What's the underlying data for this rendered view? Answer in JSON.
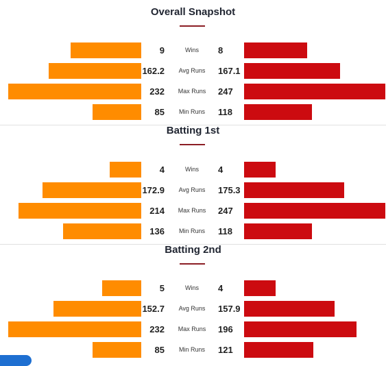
{
  "colors": {
    "team_a": "#ff8c00",
    "team_b": "#cc0b10",
    "accent": "#8b1d24"
  },
  "scale_max": 260,
  "sections": [
    {
      "title": "Overall Snapshot",
      "rows": [
        {
          "label": "Wins",
          "left": "9",
          "right": "8",
          "left_value": 9,
          "right_value": 8,
          "kind": "wins"
        },
        {
          "label": "Avg Runs",
          "left": "162.2",
          "right": "167.1",
          "left_value": 162.2,
          "right_value": 167.1,
          "kind": "runs"
        },
        {
          "label": "Max Runs",
          "left": "232",
          "right": "247",
          "left_value": 232,
          "right_value": 247,
          "kind": "runs"
        },
        {
          "label": "Min Runs",
          "left": "85",
          "right": "118",
          "left_value": 85,
          "right_value": 118,
          "kind": "runs"
        }
      ]
    },
    {
      "title": "Batting 1st",
      "rows": [
        {
          "label": "Wins",
          "left": "4",
          "right": "4",
          "left_value": 4,
          "right_value": 4,
          "kind": "wins"
        },
        {
          "label": "Avg Runs",
          "left": "172.9",
          "right": "175.3",
          "left_value": 172.9,
          "right_value": 175.3,
          "kind": "runs"
        },
        {
          "label": "Max Runs",
          "left": "214",
          "right": "247",
          "left_value": 214,
          "right_value": 247,
          "kind": "runs"
        },
        {
          "label": "Min Runs",
          "left": "136",
          "right": "118",
          "left_value": 136,
          "right_value": 118,
          "kind": "runs"
        }
      ]
    },
    {
      "title": "Batting 2nd",
      "rows": [
        {
          "label": "Wins",
          "left": "5",
          "right": "4",
          "left_value": 5,
          "right_value": 4,
          "kind": "wins"
        },
        {
          "label": "Avg Runs",
          "left": "152.7",
          "right": "157.9",
          "left_value": 152.7,
          "right_value": 157.9,
          "kind": "runs"
        },
        {
          "label": "Max Runs",
          "left": "232",
          "right": "196",
          "left_value": 232,
          "right_value": 196,
          "kind": "runs"
        },
        {
          "label": "Min Runs",
          "left": "85",
          "right": "121",
          "left_value": 85,
          "right_value": 121,
          "kind": "runs"
        }
      ]
    }
  ]
}
